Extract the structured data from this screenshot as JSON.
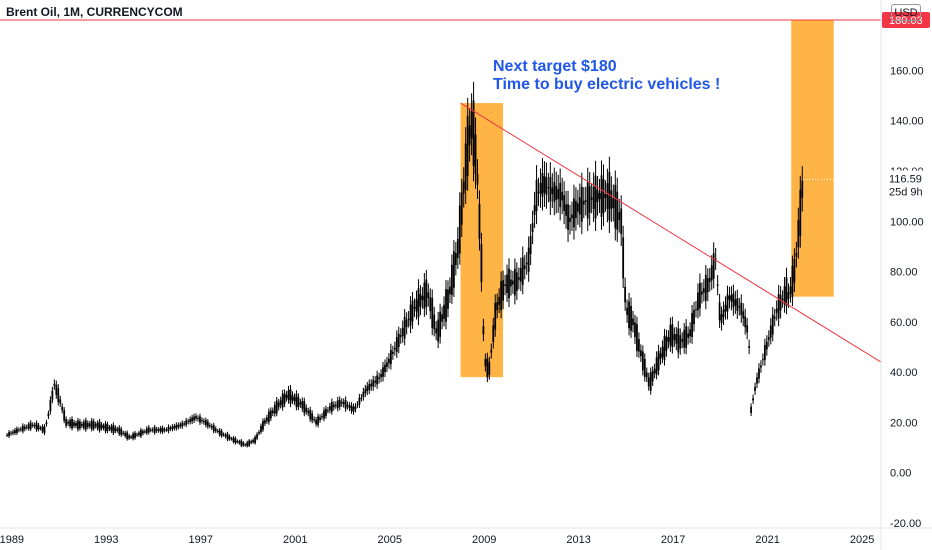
{
  "header": {
    "title": "Brent Oil, 1M, CURRENCYCOM",
    "currency": "USD"
  },
  "annotation": {
    "line1": "Next target $180",
    "line2": "Time to buy electric vehicles !"
  },
  "colors": {
    "highlight_box": "#ffa726",
    "trendline": "#f23645",
    "annotation_text": "#2157e8",
    "candles": "#000000"
  },
  "chart_data": {
    "type": "line",
    "title": "Brent Oil, 1M, CURRENCYCOM",
    "xlabel": "",
    "ylabel": "",
    "x_ticks": [
      "1989",
      "1993",
      "1997",
      "2001",
      "2005",
      "2009",
      "2013",
      "2017",
      "2021",
      "2025"
    ],
    "y_ticks": [
      "-20.00",
      "0.00",
      "20.00",
      "40.00",
      "60.00",
      "80.00",
      "100.00",
      "120.00",
      "140.00",
      "160.00"
    ],
    "xlim": [
      1988.5,
      2025.8
    ],
    "ylim": [
      -22,
      188
    ],
    "grid": false,
    "series": [
      {
        "x": [
          1988.8,
          1989.3,
          1989.9,
          1990.4,
          1990.6,
          1990.8,
          1991.0,
          1991.3,
          1991.8,
          1992.5,
          1993.0,
          1993.5,
          1994.0,
          1994.8,
          1995.5,
          1996.2,
          1996.8,
          1997.2,
          1997.8,
          1998.4,
          1998.9,
          1999.3,
          1999.7,
          2000.2,
          2000.7,
          2001.3,
          2001.9,
          2002.5,
          2003.0,
          2003.5,
          2004.0,
          2004.6,
          2005.0,
          2005.5,
          2006.0,
          2006.6,
          2007.0,
          2007.5,
          2007.9,
          2008.3,
          2008.5,
          2008.7,
          2008.9,
          2009.0,
          2009.2,
          2009.5,
          2009.9,
          2010.4,
          2010.9,
          2011.2,
          2011.5,
          2011.9,
          2012.3,
          2012.6,
          2012.9,
          2013.3,
          2013.8,
          2014.3,
          2014.6,
          2014.8,
          2015.0,
          2015.3,
          2015.7,
          2016.0,
          2016.4,
          2016.9,
          2017.3,
          2017.7,
          2018.1,
          2018.5,
          2018.8,
          2019.0,
          2019.4,
          2019.9,
          2020.2,
          2020.3,
          2020.5,
          2020.8,
          2021.1,
          2021.4,
          2021.8,
          2021.9,
          2022.1,
          2022.2,
          2022.4,
          2022.5
        ],
        "values": [
          15,
          17,
          19,
          17,
          25,
          35,
          30,
          20,
          19,
          19,
          18,
          17,
          14,
          17,
          17,
          19,
          22,
          20,
          16,
          13,
          11,
          13,
          20,
          26,
          31,
          27,
          20,
          26,
          28,
          25,
          33,
          38,
          45,
          55,
          65,
          72,
          55,
          70,
          90,
          130,
          140,
          120,
          80,
          45,
          40,
          65,
          75,
          76,
          85,
          110,
          115,
          112,
          110,
          100,
          105,
          108,
          110,
          110,
          105,
          100,
          65,
          60,
          45,
          35,
          45,
          55,
          52,
          55,
          70,
          75,
          85,
          60,
          70,
          65,
          55,
          25,
          35,
          45,
          55,
          65,
          72,
          70,
          78,
          85,
          105,
          116.59
        ]
      }
    ],
    "annotations": [
      {
        "type": "box",
        "from": [
          2008.0,
          38
        ],
        "to": [
          2009.8,
          147
        ]
      },
      {
        "type": "box",
        "from": [
          2022.0,
          70
        ],
        "to": [
          2023.8,
          180.03
        ]
      },
      {
        "type": "trendline",
        "from": [
          2008.0,
          147
        ],
        "to": [
          2025.8,
          44
        ]
      },
      {
        "type": "hline",
        "value": 180.03,
        "label": "180.03"
      }
    ],
    "last_price": "116.59",
    "countdown": "25d 9h"
  }
}
